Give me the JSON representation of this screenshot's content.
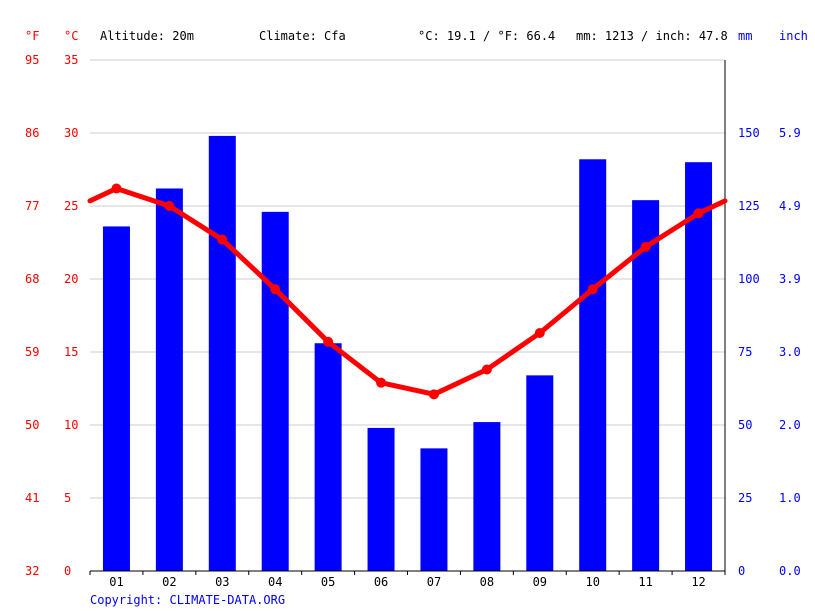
{
  "header": {
    "unit_f": "°F",
    "unit_c": "°C",
    "altitude": "Altitude: 20m",
    "climate": "Climate: Cfa",
    "temp_avg": "°C: 19.1 / °F: 66.4",
    "precip_total": "mm: 1213 / inch: 47.8",
    "unit_mm": "mm",
    "unit_inch": "inch"
  },
  "copyright": "Copyright: CLIMATE-DATA.ORG",
  "colors": {
    "temp": "#ff0000",
    "precip": "#0000ff",
    "grid": "#cccccc",
    "axis": "#000000"
  },
  "chart_data": {
    "type": "bar+line",
    "categories": [
      "01",
      "02",
      "03",
      "04",
      "05",
      "06",
      "07",
      "08",
      "09",
      "10",
      "11",
      "12"
    ],
    "precip_mm": [
      118,
      131,
      149,
      123,
      78,
      49,
      42,
      51,
      67,
      141,
      127,
      140
    ],
    "temp_c": [
      26.2,
      25.0,
      22.7,
      19.3,
      15.7,
      12.9,
      12.1,
      13.8,
      16.3,
      19.3,
      22.2,
      24.5
    ],
    "temp_c_ticks": [
      "0",
      "5",
      "10",
      "15",
      "20",
      "25",
      "30",
      "35"
    ],
    "temp_f_ticks": [
      "32",
      "41",
      "50",
      "59",
      "68",
      "77",
      "86",
      "95"
    ],
    "precip_mm_ticks": [
      "0",
      "25",
      "50",
      "75",
      "100",
      "125",
      "150"
    ],
    "precip_inch_ticks": [
      "0.0",
      "1.0",
      "2.0",
      "3.0",
      "3.9",
      "4.9",
      "5.9"
    ],
    "temp_ylim": [
      0,
      35
    ],
    "precip_ylim": [
      0,
      175
    ],
    "grid": true
  }
}
